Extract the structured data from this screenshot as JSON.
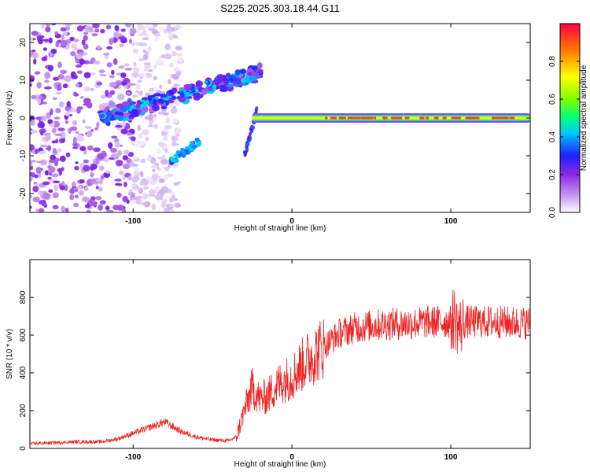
{
  "title": "S225.2025.303.18.44.G11",
  "chart_data": [
    {
      "type": "heatmap",
      "name": "spectrogram",
      "xlabel": "Height of straight line (km)",
      "ylabel": "Frequency (Hz)",
      "xlim": [
        -165,
        150
      ],
      "ylim": [
        -25,
        25
      ],
      "xticks": [
        -100,
        0,
        100
      ],
      "yticks": [
        -20,
        -10,
        0,
        10,
        20
      ],
      "colorbar": {
        "label": "Normalized spectral amplitude",
        "range": [
          0,
          1
        ],
        "ticks": [
          0.0,
          0.2,
          0.4,
          0.6,
          0.8
        ],
        "tick_labels": [
          "0.0",
          "0.2",
          "0.4",
          "0.6",
          "0.8"
        ],
        "colormap": [
          "#ffffff",
          "#c9a2f0",
          "#8a2be2",
          "#2020ff",
          "#00c8ff",
          "#00ff80",
          "#80ff00",
          "#ffff00",
          "#ff8000",
          "#ff0040"
        ]
      },
      "features": [
        {
          "name": "steady carrier line",
          "x_range": [
            -25,
            150
          ],
          "freq": 0,
          "amplitude": 0.95
        },
        {
          "name": "rising doppler track",
          "x_range": [
            -120,
            -20
          ],
          "freq_range": [
            0,
            12
          ],
          "amplitude": 0.4
        },
        {
          "name": "low-height noise",
          "x_range": [
            -165,
            -100
          ],
          "freq_range": [
            -25,
            25
          ],
          "amplitude": 0.2
        }
      ]
    },
    {
      "type": "line",
      "name": "snr",
      "xlabel": "Height of straight line (km)",
      "ylabel": "SNR (10 * v/v)",
      "xlim": [
        -165,
        150
      ],
      "ylim": [
        0,
        1000
      ],
      "xticks": [
        -100,
        0,
        100
      ],
      "yticks": [
        0,
        200,
        400,
        600,
        800
      ],
      "series": [
        {
          "name": "SNR",
          "color": "#ee2222",
          "x": [
            -165,
            -150,
            -135,
            -120,
            -110,
            -100,
            -90,
            -80,
            -70,
            -60,
            -50,
            -40,
            -35,
            -30,
            -25,
            -20,
            -15,
            -10,
            -5,
            0,
            5,
            10,
            20,
            30,
            40,
            50,
            60,
            70,
            80,
            90,
            100,
            102,
            105,
            110,
            120,
            130,
            140,
            150
          ],
          "values": [
            25,
            30,
            35,
            35,
            50,
            80,
            110,
            140,
            90,
            60,
            45,
            40,
            60,
            200,
            320,
            260,
            280,
            330,
            360,
            380,
            430,
            470,
            540,
            610,
            640,
            650,
            660,
            660,
            665,
            670,
            670,
            700,
            640,
            670,
            670,
            670,
            665,
            665
          ]
        }
      ]
    }
  ]
}
